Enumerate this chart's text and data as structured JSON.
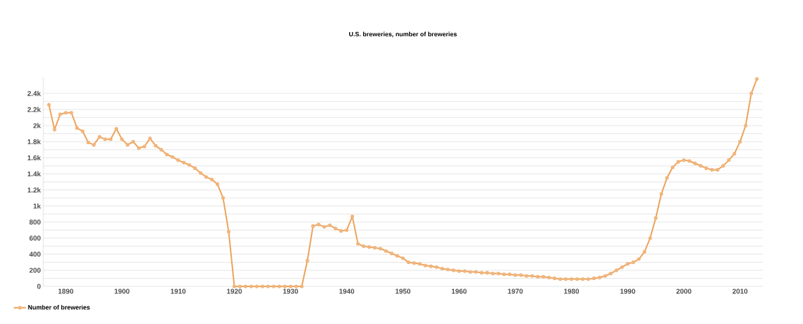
{
  "chart_data": {
    "type": "line",
    "title": "U.S. breweries, number of breweries",
    "x": [
      1887,
      1888,
      1889,
      1890,
      1891,
      1892,
      1893,
      1894,
      1895,
      1896,
      1897,
      1898,
      1899,
      1900,
      1901,
      1902,
      1903,
      1904,
      1905,
      1906,
      1907,
      1908,
      1909,
      1910,
      1911,
      1912,
      1913,
      1914,
      1915,
      1916,
      1917,
      1918,
      1919,
      1920,
      1921,
      1922,
      1923,
      1924,
      1925,
      1926,
      1927,
      1928,
      1929,
      1930,
      1931,
      1932,
      1933,
      1934,
      1935,
      1936,
      1937,
      1938,
      1939,
      1940,
      1941,
      1942,
      1943,
      1944,
      1945,
      1946,
      1947,
      1948,
      1949,
      1950,
      1951,
      1952,
      1953,
      1954,
      1955,
      1956,
      1957,
      1958,
      1959,
      1960,
      1961,
      1962,
      1963,
      1964,
      1965,
      1966,
      1967,
      1968,
      1969,
      1970,
      1971,
      1972,
      1973,
      1974,
      1975,
      1976,
      1977,
      1978,
      1979,
      1980,
      1981,
      1982,
      1983,
      1984,
      1985,
      1986,
      1987,
      1988,
      1989,
      1990,
      1991,
      1992,
      1993,
      1994,
      1995,
      1996,
      1997,
      1998,
      1999,
      2000,
      2001,
      2002,
      2003,
      2004,
      2005,
      2006,
      2007,
      2008,
      2009,
      2010,
      2011,
      2012,
      2013
    ],
    "series": [
      {
        "name": "Number of breweries",
        "color": "#eda25a",
        "values": [
          2260,
          1950,
          2140,
          2160,
          2160,
          1970,
          1930,
          1790,
          1760,
          1860,
          1830,
          1830,
          1960,
          1830,
          1760,
          1800,
          1720,
          1740,
          1840,
          1750,
          1700,
          1640,
          1610,
          1570,
          1540,
          1510,
          1470,
          1410,
          1360,
          1330,
          1270,
          1100,
          680,
          0,
          0,
          0,
          0,
          0,
          0,
          0,
          0,
          0,
          0,
          0,
          0,
          0,
          320,
          750,
          770,
          740,
          760,
          720,
          690,
          700,
          870,
          530,
          500,
          490,
          480,
          470,
          440,
          410,
          380,
          350,
          300,
          290,
          280,
          260,
          250,
          240,
          220,
          210,
          200,
          190,
          190,
          180,
          180,
          170,
          170,
          160,
          160,
          150,
          150,
          140,
          140,
          130,
          130,
          120,
          120,
          110,
          100,
          90,
          90,
          90,
          90,
          90,
          90,
          100,
          110,
          130,
          160,
          200,
          240,
          280,
          300,
          340,
          430,
          600,
          850,
          1150,
          1350,
          1480,
          1550,
          1570,
          1560,
          1530,
          1500,
          1470,
          1450,
          1450,
          1500,
          1570,
          1650,
          1800,
          2000,
          2400,
          2580
        ]
      }
    ],
    "xlim": [
      1886,
      2014
    ],
    "ylim": [
      0,
      2600
    ],
    "xticks": [
      1890,
      1900,
      1910,
      1920,
      1930,
      1940,
      1950,
      1960,
      1970,
      1980,
      1990,
      2000,
      2010
    ],
    "yticks": [
      0,
      {
        "value": 100,
        "label": null
      },
      200,
      {
        "value": 300,
        "label": null
      },
      400,
      {
        "value": 500,
        "label": null
      },
      600,
      {
        "value": 700,
        "label": null
      },
      800,
      {
        "value": 900,
        "label": null
      },
      {
        "value": 1000,
        "label": "1k"
      },
      {
        "value": 1100,
        "label": null
      },
      {
        "value": 1200,
        "label": "1.2k"
      },
      {
        "value": 1300,
        "label": null
      },
      {
        "value": 1400,
        "label": "1.4k"
      },
      {
        "value": 1500,
        "label": null
      },
      {
        "value": 1600,
        "label": "1.6k"
      },
      {
        "value": 1700,
        "label": null
      },
      {
        "value": 1800,
        "label": "1.8k"
      },
      {
        "value": 1900,
        "label": null
      },
      {
        "value": 2000,
        "label": "2k"
      },
      {
        "value": 2100,
        "label": null
      },
      {
        "value": 2200,
        "label": "2.2k"
      },
      {
        "value": 2300,
        "label": null
      },
      {
        "value": 2400,
        "label": "2.4k"
      }
    ],
    "grid": "y",
    "legend": "bottom left",
    "marker": "circle",
    "line_style": "solid"
  }
}
